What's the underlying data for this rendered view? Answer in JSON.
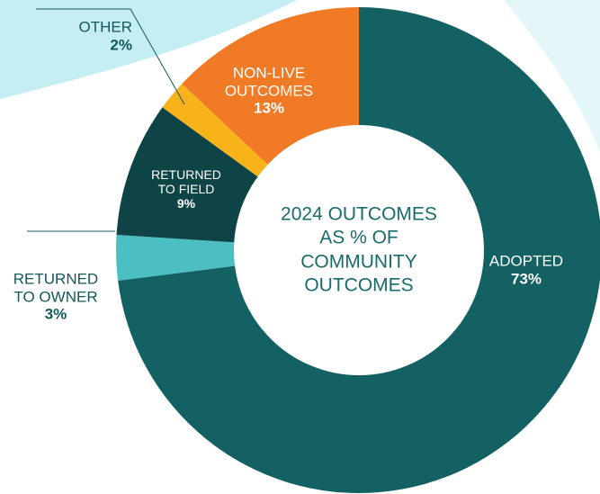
{
  "chart_data": {
    "type": "pie",
    "title": "2024 OUTCOMES AS % OF COMMUNITY OUTCOMES",
    "categories": [
      "ADOPTED",
      "RETURNED TO OWNER",
      "RETURNED TO FIELD",
      "OTHER",
      "NON-LIVE OUTCOMES"
    ],
    "values": [
      73,
      3,
      9,
      2,
      13
    ],
    "value_labels": [
      "73%",
      "3%",
      "9%",
      "2%",
      "13%"
    ],
    "colors": [
      "#136163",
      "#4bbfc1",
      "#0f4446",
      "#f8b31b",
      "#f07a25"
    ]
  }
}
